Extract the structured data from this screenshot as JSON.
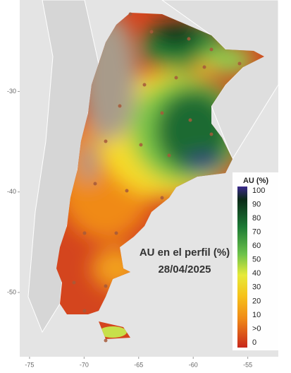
{
  "map": {
    "title": "AU en el perfil (%)",
    "date": "28/04/2025",
    "xlim": [
      -75.9,
      -52.2
    ],
    "ylim": [
      -56.4,
      -20.9
    ],
    "xticks": [
      -75,
      -70,
      -65,
      -60,
      -55
    ],
    "yticks": [
      -30,
      -40,
      -50
    ]
  },
  "legend": {
    "title": "AU (%)",
    "labels": [
      "100",
      "90",
      "80",
      "70",
      "60",
      "50",
      "40",
      "30",
      "20",
      "10",
      ">0",
      "0"
    ]
  }
}
